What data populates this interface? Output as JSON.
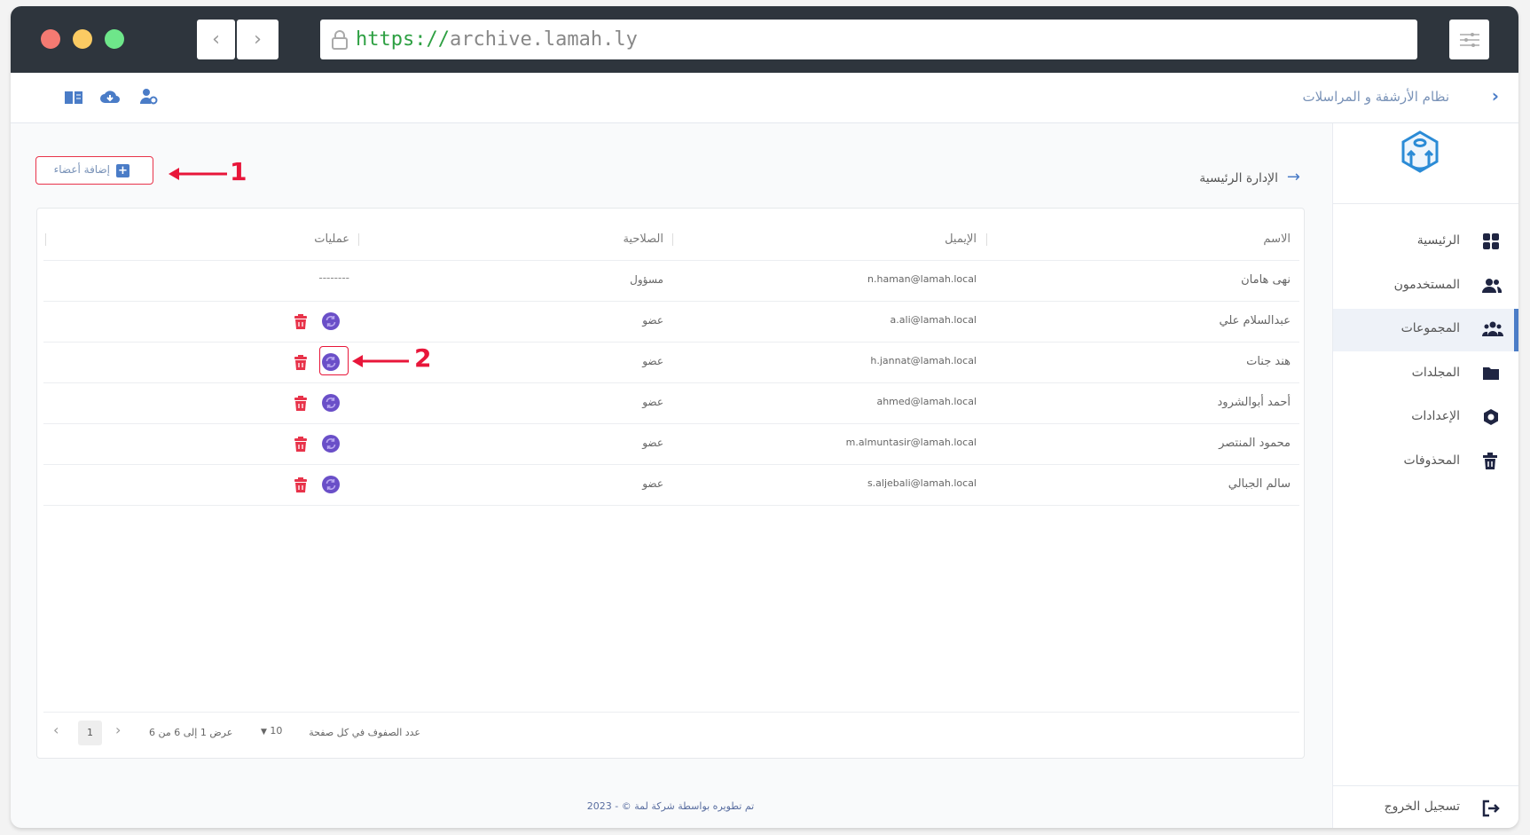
{
  "browser": {
    "url_scheme": "https://",
    "url_host": "archive.lamah.ly",
    "back_icon": "chevron-left-icon",
    "forward_icon": "chevron-right-icon",
    "settings_icon": "sliders-icon",
    "lock_icon": "lock-icon"
  },
  "header": {
    "title": "نظام الأرشفة و المراسلات",
    "icons": [
      "book-icon",
      "cloud-download-icon",
      "user-gear-icon"
    ]
  },
  "sidebar": {
    "items": [
      {
        "label": "الرئيسية",
        "icon": "grid-icon"
      },
      {
        "label": "المستخدمون",
        "icon": "users-icon"
      },
      {
        "label": "المجموعات",
        "icon": "group-icon",
        "active": true
      },
      {
        "label": "المجلدات",
        "icon": "folder-icon"
      },
      {
        "label": "الإعدادات",
        "icon": "settings-icon"
      },
      {
        "label": "المحذوفات",
        "icon": "trash-icon"
      }
    ],
    "logout": "تسجيل الخروج"
  },
  "main": {
    "breadcrumb": "الإدارة الرئيسية",
    "add_button": "إضافة أعضاء",
    "table": {
      "columns": [
        "الاسم",
        "الإيميل",
        "الصلاحية",
        "عمليات"
      ],
      "rows": [
        {
          "name": "نهى هامان",
          "email": "n.haman@lamah.local",
          "role": "مسؤول",
          "ops": "--------"
        },
        {
          "name": "عبدالسلام علي",
          "email": "a.ali@lamah.local",
          "role": "عضو"
        },
        {
          "name": "هند جنات",
          "email": "h.jannat@lamah.local",
          "role": "عضو"
        },
        {
          "name": "أحمد أبوالشرود",
          "email": "ahmed@lamah.local",
          "role": "عضو"
        },
        {
          "name": "محمود المنتصر",
          "email": "m.almuntasir@lamah.local",
          "role": "عضو"
        },
        {
          "name": "سالم الجبالي",
          "email": "s.aljebali@lamah.local",
          "role": "عضو"
        }
      ]
    },
    "pagination": {
      "rows_per_page_label": "عدد الصفوف في كل صفحة",
      "rows_per_page": "10",
      "range": "عرض 1 إلى 6 من 6",
      "page": "1"
    }
  },
  "footer": "تم تطويره بواسطة شركة لمة © - 2023",
  "annotations": {
    "one": "1",
    "two": "2",
    "color": "#e8163a"
  },
  "colors": {
    "accent": "#4a7cc7",
    "delete": "#e8334a",
    "refresh": "#6a4fc8",
    "titlebar": "#2e353d"
  }
}
